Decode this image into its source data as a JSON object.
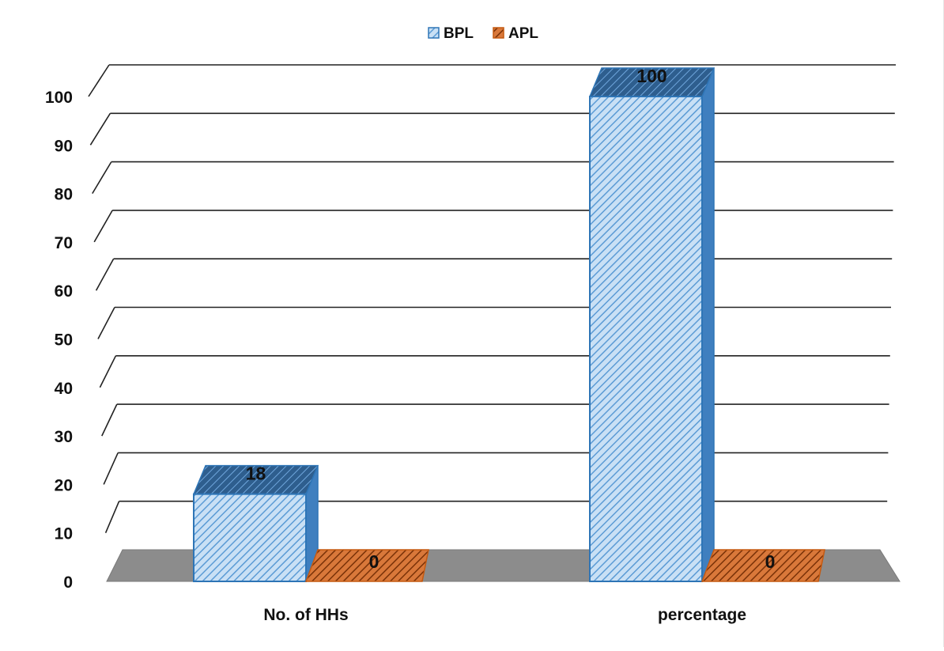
{
  "chart_data": {
    "type": "bar",
    "categories": [
      "No. of HHs",
      "percentage"
    ],
    "series": [
      {
        "name": "BPL",
        "values": [
          18,
          100
        ],
        "color": "#9dc3e6",
        "stroke": "#2e75b6"
      },
      {
        "name": "APL",
        "values": [
          0,
          0
        ],
        "color": "#c55a11",
        "stroke": "#c55a11"
      }
    ],
    "data_labels": [
      [
        "18",
        "100"
      ],
      [
        "0",
        "0"
      ]
    ],
    "yticks": [
      "0",
      "10",
      "20",
      "30",
      "40",
      "50",
      "60",
      "70",
      "80",
      "90",
      "100"
    ],
    "ylim": [
      0,
      100
    ],
    "grid": true,
    "legend": "top-center",
    "style": "3d-column-hatched"
  }
}
